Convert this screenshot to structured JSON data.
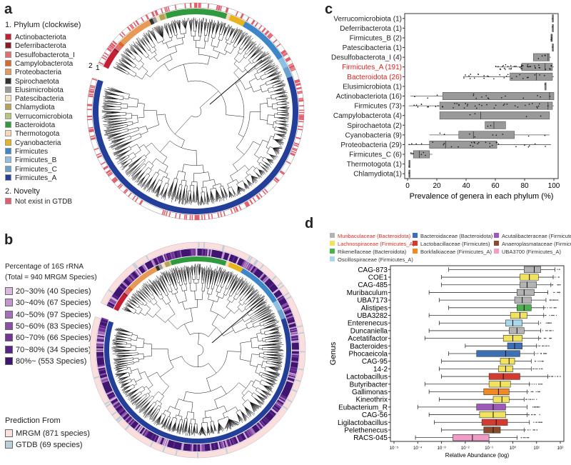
{
  "panel_labels": {
    "a": "a",
    "b": "b",
    "c": "c",
    "d": "d"
  },
  "legend_a": {
    "title": "1. Phylum (clockwise)",
    "items": [
      {
        "name": "Actinobacteriota",
        "color": "#c41f35"
      },
      {
        "name": "Deferribacterota",
        "color": "#8b1a28"
      },
      {
        "name": "Desulfobacterota_I",
        "color": "#e26f6f"
      },
      {
        "name": "Campylobacterota",
        "color": "#d96a2a"
      },
      {
        "name": "Proteobacteria",
        "color": "#e79a58"
      },
      {
        "name": "Spirochaetota",
        "color": "#333333"
      },
      {
        "name": "Elusimicrobiota",
        "color": "#9a9a9a"
      },
      {
        "name": "Patescibacteria",
        "color": "#f6e2c6"
      },
      {
        "name": "Chlamydiota",
        "color": "#b9a155"
      },
      {
        "name": "Verrucomicrobiota",
        "color": "#b7c77a"
      },
      {
        "name": "Bacteroidota",
        "color": "#2f9a3e"
      },
      {
        "name": "Thermotogota",
        "color": "#f6d8b8"
      },
      {
        "name": "Cyanobacteria",
        "color": "#e8b41d"
      },
      {
        "name": "Firmicutes",
        "color": "#3d87c8"
      },
      {
        "name": "Firmicutes_B",
        "color": "#8cc0e4"
      },
      {
        "name": "Firmicutes_C",
        "color": "#6aa0cd"
      },
      {
        "name": "Firmicutes_A",
        "color": "#233f99"
      }
    ],
    "novelty_title": "2. Novelty",
    "novelty_item": {
      "name": "Not exist in GTDB",
      "color": "#e35c6b"
    },
    "ring_marks": {
      "ring2": "2",
      "ring1": "1"
    }
  },
  "legend_b": {
    "title_line1": "Percentage of 16S rRNA",
    "title_line2": "(Total = 940 MRGM Species)",
    "items": [
      {
        "name": "20~30% (40 Species)",
        "color": "#d9b7de"
      },
      {
        "name": "30~40% (67 Species)",
        "color": "#c295cd"
      },
      {
        "name": "40~50% (97 Species)",
        "color": "#a66fbb"
      },
      {
        "name": "50~60% (83 Species)",
        "color": "#8a4fa8"
      },
      {
        "name": "60~70% (66 Species)",
        "color": "#72369a"
      },
      {
        "name": "70~80% (34 Species)",
        "color": "#5a2588"
      },
      {
        "name": "80%~ (553 Species)",
        "color": "#3f1570"
      }
    ],
    "pred_title": "Prediction From",
    "pred_items": [
      {
        "name": "MRGM (871 species)",
        "color": "#fbdede"
      },
      {
        "name": "GTDB (69 species)",
        "color": "#b9cfd9"
      }
    ]
  },
  "chart_data": [
    {
      "id": "c",
      "type": "box",
      "orientation": "horizontal",
      "xlabel": "Prevalence of genera in each phylum (%)",
      "xlim": [
        0,
        100
      ],
      "xticks": [
        0,
        20,
        40,
        60,
        80,
        100
      ],
      "highlight_color": "#e02020",
      "categories": [
        {
          "label": "Verrucomicrobiota (1)",
          "q1": 99,
          "median": 99,
          "q3": 99,
          "wlo": 99,
          "whi": 99,
          "hl": false
        },
        {
          "label": "Deferribacterota (1)",
          "q1": 99,
          "median": 99,
          "q3": 99,
          "wlo": 99,
          "whi": 99,
          "hl": false
        },
        {
          "label": "Firmicutes_B (2)",
          "q1": 98,
          "median": 98.5,
          "q3": 99,
          "wlo": 98,
          "whi": 99,
          "hl": false
        },
        {
          "label": "Patescibacteria (1)",
          "q1": 99,
          "median": 99,
          "q3": 99,
          "wlo": 99,
          "whi": 99,
          "hl": false
        },
        {
          "label": "Desulfobacterota_I (4)",
          "q1": 86,
          "median": 96,
          "q3": 97,
          "wlo": 86,
          "whi": 98,
          "hl": false
        },
        {
          "label": "Firmicutes_A (191)",
          "q1": 78,
          "median": 94,
          "q3": 99,
          "wlo": 60,
          "whi": 100,
          "hl": true
        },
        {
          "label": "Bacteroidota (26)",
          "q1": 70,
          "median": 88,
          "q3": 99,
          "wlo": 38,
          "whi": 100,
          "hl": true
        },
        {
          "label": "Elusimicrobiota (1)",
          "q1": 94,
          "median": 94,
          "q3": 94,
          "wlo": 94,
          "whi": 94,
          "hl": false
        },
        {
          "label": "Actinobacteriota (16)",
          "q1": 24,
          "median": 97,
          "q3": 100,
          "wlo": 2,
          "whi": 100,
          "hl": false
        },
        {
          "label": "Firmicutes (73)",
          "q1": 22,
          "median": 96,
          "q3": 99,
          "wlo": 1,
          "whi": 100,
          "hl": false
        },
        {
          "label": "Campylobacterota (4)",
          "q1": 22,
          "median": 50,
          "q3": 97,
          "wlo": 22,
          "whi": 97,
          "hl": false
        },
        {
          "label": "Spirochaetota (2)",
          "q1": 53,
          "median": 59,
          "q3": 67,
          "wlo": 53,
          "whi": 67,
          "hl": false
        },
        {
          "label": "Cyanobacteria (9)",
          "q1": 35,
          "median": 45,
          "q3": 73,
          "wlo": 15,
          "whi": 97,
          "hl": false
        },
        {
          "label": "Proteobacteria (29)",
          "q1": 15,
          "median": 26,
          "q3": 61,
          "wlo": 1,
          "whi": 98,
          "hl": false
        },
        {
          "label": "Firmicutes_C (6)",
          "q1": 4,
          "median": 8,
          "q3": 15,
          "wlo": 2,
          "whi": 17,
          "hl": false
        },
        {
          "label": "Thermotogota (1)",
          "q1": 1,
          "median": 1,
          "q3": 1,
          "wlo": 1,
          "whi": 1,
          "hl": false
        },
        {
          "label": "Chlamydiota(1)",
          "q1": 1,
          "median": 1,
          "q3": 1,
          "wlo": 1,
          "whi": 1,
          "hl": false
        }
      ]
    },
    {
      "id": "d",
      "type": "box",
      "orientation": "horizontal",
      "xlabel": "Relative Abundance (log)",
      "ylabel": "Genus",
      "xscale": "log",
      "xlim": [
        1e-05,
        100
      ],
      "xticks": [
        "10⁻⁵",
        "10⁻⁴",
        "10⁻³",
        "10⁻²",
        "10⁻¹",
        "10⁰",
        "10¹",
        "10²"
      ],
      "legend": [
        {
          "name": "Muribaculaceae (Bacteroidota)",
          "color": "#b3b3b3",
          "text_color": "#d9302a"
        },
        {
          "name": "Lachnospiraceae (Firmicutes_A)",
          "color": "#f1e35d",
          "text_color": "#d9302a"
        },
        {
          "name": "Rikenellaceae (Bacteroidota)",
          "color": "#4caf50",
          "text_color": "#333333"
        },
        {
          "name": "Oscillospiraceae (Firmicutes_A)",
          "color": "#a8d8ea",
          "text_color": "#333333"
        },
        {
          "name": "Bacteroidaceae (Bacteroidota)",
          "color": "#3b6fb6",
          "text_color": "#333333"
        },
        {
          "name": "Lactobacillaceae (Firmicutes)",
          "color": "#d63a2f",
          "text_color": "#333333"
        },
        {
          "name": "Borkfalkiaceae (Firmicutes_A)",
          "color": "#f08a24",
          "text_color": "#333333"
        },
        {
          "name": "Acutalibacteraceae (Firmicutes_A)",
          "color": "#9c59b5",
          "text_color": "#333333"
        },
        {
          "name": "Anaeroplasmataceae (Firmicutes)",
          "color": "#8b4a2b",
          "text_color": "#333333"
        },
        {
          "name": "UBA3700 (Firmicutes_A)",
          "color": "#f29cc8",
          "text_color": "#333333"
        }
      ],
      "categories": [
        {
          "label": "CAG-873",
          "color": "#b3b3b3",
          "q1": 3,
          "median": 8,
          "q3": 15,
          "wlo": 0.002,
          "whi": 60
        },
        {
          "label": "COE1",
          "color": "#f1e35d",
          "q1": 2,
          "median": 5,
          "q3": 12,
          "wlo": 0.001,
          "whi": 50
        },
        {
          "label": "CAG-485",
          "color": "#b3b3b3",
          "q1": 2,
          "median": 4,
          "q3": 10,
          "wlo": 0.001,
          "whi": 40
        },
        {
          "label": "Muribaculum",
          "color": "#b3b3b3",
          "q1": 1.5,
          "median": 3,
          "q3": 8,
          "wlo": 0.0003,
          "whi": 30
        },
        {
          "label": "UBA7173",
          "color": "#b3b3b3",
          "q1": 1.2,
          "median": 2.5,
          "q3": 6,
          "wlo": 0.0008,
          "whi": 25
        },
        {
          "label": "Alistipes",
          "color": "#4caf50",
          "q1": 1.5,
          "median": 3,
          "q3": 6,
          "wlo": 0.002,
          "whi": 20
        },
        {
          "label": "UBA3282",
          "color": "#f1e35d",
          "q1": 0.8,
          "median": 2,
          "q3": 4,
          "wlo": 0.0003,
          "whi": 20
        },
        {
          "label": "Enterenecus",
          "color": "#a8d8ea",
          "q1": 0.5,
          "median": 1,
          "q3": 2.5,
          "wlo": 0.0008,
          "whi": 12
        },
        {
          "label": "Duncaniella",
          "color": "#b3b3b3",
          "q1": 0.7,
          "median": 1.5,
          "q3": 3,
          "wlo": 0.0003,
          "whi": 15
        },
        {
          "label": "Acetatifactor",
          "color": "#f1e35d",
          "q1": 0.4,
          "median": 1,
          "q3": 2.5,
          "wlo": 0.0002,
          "whi": 12
        },
        {
          "label": "Bacteroides",
          "color": "#3b6fb6",
          "q1": 0.6,
          "median": 1.2,
          "q3": 2.5,
          "wlo": 0.01,
          "whi": 10
        },
        {
          "label": "Phocaeicola",
          "color": "#3b6fb6",
          "q1": 0.03,
          "median": 0.5,
          "q3": 2,
          "wlo": 0.002,
          "whi": 8
        },
        {
          "label": "CAG-95",
          "color": "#f1e35d",
          "q1": 0.3,
          "median": 0.7,
          "q3": 1.2,
          "wlo": 0.001,
          "whi": 6
        },
        {
          "label": "14-2",
          "color": "#f1e35d",
          "q1": 0.25,
          "median": 0.5,
          "q3": 1,
          "wlo": 0.0008,
          "whi": 6
        },
        {
          "label": "Lactobacillus",
          "color": "#d63a2f",
          "q1": 0.1,
          "median": 0.4,
          "q3": 2,
          "wlo": 0.001,
          "whi": 30
        },
        {
          "label": "Butyribacter",
          "color": "#f1e35d",
          "q1": 0.1,
          "median": 0.3,
          "q3": 0.8,
          "wlo": 0.0002,
          "whi": 5
        },
        {
          "label": "Gallimonas",
          "color": "#f08a24",
          "q1": 0.06,
          "median": 0.25,
          "q3": 0.7,
          "wlo": 0.0003,
          "whi": 4
        },
        {
          "label": "Kineothrix",
          "color": "#f1e35d",
          "q1": 0.15,
          "median": 0.35,
          "q3": 0.7,
          "wlo": 0.0008,
          "whi": 3
        },
        {
          "label": "Eubacterium_R",
          "color": "#9c59b5",
          "q1": 0.03,
          "median": 0.15,
          "q3": 0.5,
          "wlo": 0.0001,
          "whi": 4
        },
        {
          "label": "CAG-56",
          "color": "#f1e35d",
          "q1": 0.04,
          "median": 0.15,
          "q3": 0.5,
          "wlo": 0.0003,
          "whi": 4
        },
        {
          "label": "Ligilactobacillus",
          "color": "#d63a2f",
          "q1": 0.05,
          "median": 0.2,
          "q3": 0.6,
          "wlo": 0.0005,
          "whi": 5
        },
        {
          "label": "Pelethenecus",
          "color": "#8b4a2b",
          "q1": 0.06,
          "median": 0.15,
          "q3": 0.3,
          "wlo": 0.001,
          "whi": 3
        },
        {
          "label": "RACS-045",
          "color": "#f29cc8",
          "q1": 0.003,
          "median": 0.02,
          "q3": 0.1,
          "wlo": 8e-05,
          "whi": 1.5
        }
      ]
    }
  ]
}
